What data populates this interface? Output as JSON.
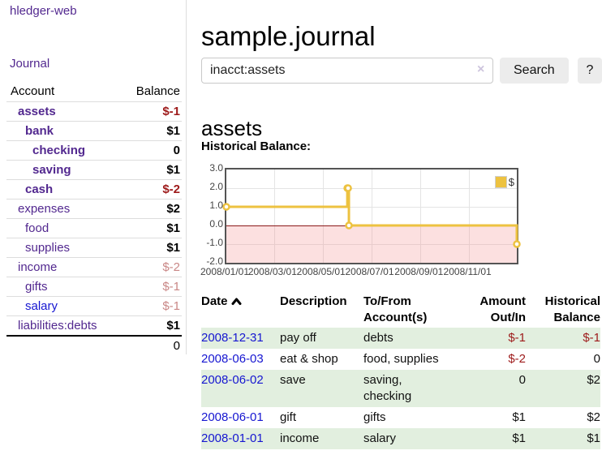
{
  "colors": {
    "link_purple": "#52288f",
    "link_blue": "#1616d1",
    "neg_strong": "#9d1a1a",
    "neg_soft": "#c98786",
    "row_green": "#e2efdf",
    "chart_gold": "#edc240",
    "chart_neg_region": "#f8dcdc",
    "chart_zero_line": "#8b1a1a"
  },
  "app": {
    "brand": "hledger-web",
    "nav_journal": "Journal"
  },
  "sidebar": {
    "col_account": "Account",
    "col_balance": "Balance",
    "accounts": [
      {
        "name": "assets",
        "depth": 1,
        "bold": true,
        "balance": "$-1",
        "amount_class": "neg-strong",
        "blue": false
      },
      {
        "name": "bank",
        "depth": 2,
        "bold": true,
        "balance": "$1",
        "amount_class": "",
        "blue": false
      },
      {
        "name": "checking",
        "depth": 3,
        "bold": true,
        "balance": "0",
        "amount_class": "",
        "blue": false
      },
      {
        "name": "saving",
        "depth": 3,
        "bold": true,
        "balance": "$1",
        "amount_class": "",
        "blue": false
      },
      {
        "name": "cash",
        "depth": 2,
        "bold": true,
        "balance": "$-2",
        "amount_class": "neg-strong",
        "blue": false
      },
      {
        "name": "expenses",
        "depth": 1,
        "bold": false,
        "balance": "$2",
        "amount_class": "",
        "blue": false
      },
      {
        "name": "food",
        "depth": 2,
        "bold": false,
        "balance": "$1",
        "amount_class": "",
        "blue": false
      },
      {
        "name": "supplies",
        "depth": 2,
        "bold": false,
        "balance": "$1",
        "amount_class": "",
        "blue": false
      },
      {
        "name": "income",
        "depth": 1,
        "bold": false,
        "balance": "$-2",
        "amount_class": "neg-soft",
        "blue": false
      },
      {
        "name": "gifts",
        "depth": 2,
        "bold": false,
        "balance": "$-1",
        "amount_class": "neg-soft",
        "blue": false
      },
      {
        "name": "salary",
        "depth": 2,
        "bold": false,
        "balance": "$-1",
        "amount_class": "neg-soft",
        "blue": true
      },
      {
        "name": "liabilities:debts",
        "depth": 1,
        "bold": false,
        "balance": "$1",
        "amount_class": "",
        "blue": false
      }
    ],
    "total": "0"
  },
  "header": {
    "title": "sample.journal"
  },
  "search": {
    "value": "inacct:assets",
    "clear_icon": "×",
    "button": "Search",
    "help_button": "?"
  },
  "account_page": {
    "heading": "assets",
    "chart_label": "Historical Balance:"
  },
  "chart_data": {
    "type": "line",
    "step": true,
    "title": "Historical Balance",
    "xlabel": "",
    "ylabel": "",
    "series": [
      {
        "name": "$",
        "color": "#edc240",
        "points": [
          [
            "2008-01-01",
            1
          ],
          [
            "2008-06-01",
            2
          ],
          [
            "2008-06-02",
            2
          ],
          [
            "2008-06-03",
            0
          ],
          [
            "2008-12-31",
            -1
          ]
        ]
      }
    ],
    "x_range": [
      "2008-01-01",
      "2008-12-31"
    ],
    "ylim": [
      -2,
      3
    ],
    "y_ticks": [
      "3.0",
      "2.0",
      "1.0",
      "0.0",
      "-1.0",
      "-2.0"
    ],
    "y_tick_values": [
      3,
      2,
      1,
      0,
      -1,
      -2
    ],
    "x_ticks": [
      {
        "label": "2008/01/01",
        "date": "2008-01-01"
      },
      {
        "label": "2008/03/01",
        "date": "2008-03-01"
      },
      {
        "label": "2008/05/01",
        "date": "2008-05-01"
      },
      {
        "label": "2008/07/01",
        "date": "2008-07-01"
      },
      {
        "label": "2008/09/01",
        "date": "2008-09-01"
      },
      {
        "label": "2008/11/01",
        "date": "2008-11-01"
      }
    ],
    "grid": true,
    "legend_position": "top-right",
    "negative_region_shaded": true
  },
  "register": {
    "columns": [
      {
        "label": "Date",
        "align": "left",
        "sorted": "asc"
      },
      {
        "label": "Description",
        "align": "left"
      },
      {
        "label": "To/From Account(s)",
        "align": "left"
      },
      {
        "label": "Amount Out/In",
        "align": "right"
      },
      {
        "label": "Historical Balance",
        "align": "right"
      }
    ],
    "rows": [
      {
        "date": "2008-12-31",
        "description": "pay off",
        "accounts": "debts",
        "amount": "$-1",
        "amount_neg": true,
        "balance": "$-1",
        "balance_neg": true
      },
      {
        "date": "2008-06-03",
        "description": "eat & shop",
        "accounts": "food, supplies",
        "amount": "$-2",
        "amount_neg": true,
        "balance": "0",
        "balance_neg": false
      },
      {
        "date": "2008-06-02",
        "description": "save",
        "accounts": "saving, checking",
        "amount": "0",
        "amount_neg": false,
        "balance": "$2",
        "balance_neg": false
      },
      {
        "date": "2008-06-01",
        "description": "gift",
        "accounts": "gifts",
        "amount": "$1",
        "amount_neg": false,
        "balance": "$2",
        "balance_neg": false
      },
      {
        "date": "2008-01-01",
        "description": "income",
        "accounts": "salary",
        "amount": "$1",
        "amount_neg": false,
        "balance": "$1",
        "balance_neg": false
      }
    ]
  }
}
